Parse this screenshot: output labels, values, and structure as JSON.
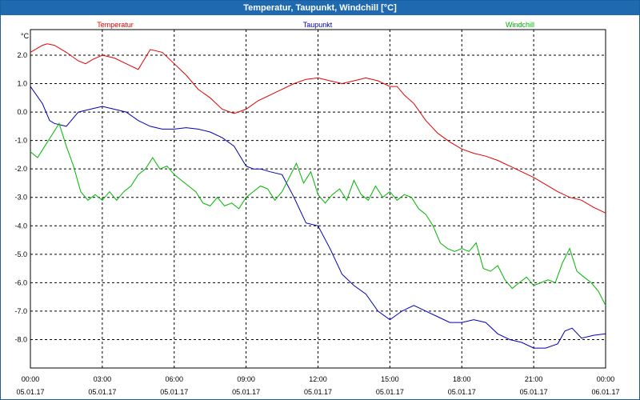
{
  "window": {
    "title": "Temperatur, Taupunkt, Windchill [°C]"
  },
  "chart_data": {
    "type": "line",
    "title": "Temperatur, Taupunkt, Windchill [°C]",
    "ylabel": "°C",
    "xlabel": "",
    "ylim": [
      -9.0,
      2.9
    ],
    "xlim": [
      0,
      24
    ],
    "grid": true,
    "y_ticks": [
      "2.0",
      "1.0",
      "0.0",
      "-1.0",
      "-2.0",
      "-3.0",
      "-4.0",
      "-5.0",
      "-6.0",
      "-7.0",
      "-8.0"
    ],
    "y_tick_values": [
      2,
      1,
      0,
      -1,
      -2,
      -3,
      -4,
      -5,
      -6,
      -7,
      -8
    ],
    "x_ticks": [
      {
        "time": "00:00",
        "date": "05.01.17"
      },
      {
        "time": "03:00",
        "date": "05.01.17"
      },
      {
        "time": "06:00",
        "date": "05.01.17"
      },
      {
        "time": "09:00",
        "date": "05.01.17"
      },
      {
        "time": "12:00",
        "date": "05.01.17"
      },
      {
        "time": "15:00",
        "date": "05.01.17"
      },
      {
        "time": "18:00",
        "date": "05.01.17"
      },
      {
        "time": "21:00",
        "date": "05.01.17"
      },
      {
        "time": "00:00",
        "date": "06.01.17"
      }
    ],
    "x_tick_values": [
      0,
      3,
      6,
      9,
      12,
      15,
      18,
      21,
      24
    ],
    "series": [
      {
        "name": "Temperatur",
        "color": "#e00000",
        "x": [
          0,
          0.5,
          0.7,
          1.0,
          1.5,
          2.0,
          2.3,
          2.6,
          3.0,
          3.5,
          4.0,
          4.5,
          5.0,
          5.5,
          6.0,
          6.5,
          7.0,
          7.5,
          8.0,
          8.5,
          9.0,
          9.5,
          10.0,
          10.5,
          11.0,
          11.5,
          12.0,
          12.5,
          13.0,
          13.5,
          14.0,
          14.5,
          15.0,
          15.3,
          15.6,
          16.0,
          16.5,
          17.0,
          17.5,
          18.0,
          18.5,
          19.0,
          19.5,
          20.0,
          20.5,
          21.0,
          21.5,
          22.0,
          22.5,
          23.0,
          23.5,
          24.0
        ],
        "values": [
          2.1,
          2.35,
          2.4,
          2.35,
          2.1,
          1.8,
          1.7,
          1.85,
          2.0,
          1.9,
          1.7,
          1.5,
          2.2,
          2.1,
          1.7,
          1.3,
          0.8,
          0.5,
          0.1,
          -0.05,
          0.1,
          0.4,
          0.6,
          0.8,
          1.0,
          1.15,
          1.2,
          1.1,
          1.0,
          1.1,
          1.2,
          1.1,
          0.9,
          0.9,
          0.6,
          0.3,
          -0.3,
          -0.75,
          -1.05,
          -1.3,
          -1.45,
          -1.55,
          -1.7,
          -1.9,
          -2.1,
          -2.3,
          -2.55,
          -2.8,
          -3.0,
          -3.1,
          -3.35,
          -3.55
        ]
      },
      {
        "name": "Taupunkt",
        "color": "#0000b4",
        "x": [
          0,
          0.5,
          0.8,
          1.0,
          1.5,
          2.0,
          2.5,
          3.0,
          3.5,
          4.0,
          4.5,
          5.0,
          5.5,
          6.0,
          6.5,
          7.0,
          7.5,
          8.0,
          8.5,
          9.0,
          9.3,
          9.6,
          10.0,
          10.5,
          11.0,
          11.5,
          12.0,
          12.5,
          13.0,
          13.5,
          14.0,
          14.5,
          15.0,
          15.5,
          16.0,
          16.5,
          17.0,
          17.5,
          18.0,
          18.5,
          19.0,
          19.5,
          20.0,
          20.5,
          21.0,
          21.5,
          22.0,
          22.3,
          22.6,
          23.0,
          23.5,
          24.0
        ],
        "values": [
          0.9,
          0.3,
          -0.3,
          -0.4,
          -0.5,
          0.0,
          0.1,
          0.2,
          0.1,
          0.0,
          -0.3,
          -0.5,
          -0.6,
          -0.6,
          -0.55,
          -0.6,
          -0.7,
          -0.9,
          -1.2,
          -1.9,
          -2.0,
          -2.0,
          -2.1,
          -2.2,
          -3.0,
          -3.9,
          -4.0,
          -4.8,
          -5.7,
          -6.1,
          -6.4,
          -7.0,
          -7.3,
          -7.0,
          -6.8,
          -7.0,
          -7.2,
          -7.4,
          -7.4,
          -7.3,
          -7.4,
          -7.8,
          -8.0,
          -8.1,
          -8.3,
          -8.3,
          -8.15,
          -7.7,
          -7.6,
          -7.95,
          -7.85,
          -7.8
        ]
      },
      {
        "name": "Windchill",
        "color": "#00b400",
        "x": [
          0,
          0.3,
          0.6,
          0.9,
          1.2,
          1.5,
          1.8,
          2.1,
          2.4,
          2.7,
          3.0,
          3.3,
          3.6,
          3.9,
          4.2,
          4.5,
          4.8,
          5.1,
          5.4,
          5.7,
          6.0,
          6.3,
          6.6,
          6.9,
          7.2,
          7.5,
          7.8,
          8.1,
          8.4,
          8.7,
          9.0,
          9.3,
          9.6,
          9.9,
          10.2,
          10.5,
          10.8,
          11.1,
          11.4,
          11.7,
          12.0,
          12.3,
          12.6,
          12.9,
          13.2,
          13.5,
          13.8,
          14.1,
          14.4,
          14.7,
          15.0,
          15.3,
          15.6,
          15.9,
          16.2,
          16.5,
          16.8,
          17.1,
          17.4,
          17.7,
          18.0,
          18.3,
          18.6,
          18.9,
          19.2,
          19.5,
          19.8,
          20.1,
          20.4,
          20.7,
          21.0,
          21.3,
          21.6,
          21.9,
          22.2,
          22.5,
          22.8,
          23.1,
          23.4,
          23.7,
          24.0
        ],
        "values": [
          -1.4,
          -1.6,
          -1.2,
          -0.8,
          -0.4,
          -1.2,
          -1.9,
          -2.8,
          -3.1,
          -2.9,
          -3.1,
          -2.8,
          -3.1,
          -2.8,
          -2.6,
          -2.2,
          -2.0,
          -1.6,
          -2.0,
          -1.9,
          -2.2,
          -2.4,
          -2.6,
          -2.8,
          -3.2,
          -3.3,
          -3.0,
          -3.3,
          -3.2,
          -3.4,
          -3.0,
          -2.8,
          -2.6,
          -2.7,
          -3.1,
          -2.8,
          -2.3,
          -1.8,
          -2.5,
          -2.1,
          -2.9,
          -3.2,
          -2.9,
          -2.7,
          -3.1,
          -2.4,
          -2.9,
          -3.1,
          -2.6,
          -3.0,
          -2.8,
          -3.1,
          -2.9,
          -3.0,
          -3.4,
          -3.6,
          -4.0,
          -4.6,
          -4.8,
          -4.9,
          -4.8,
          -4.9,
          -4.6,
          -5.5,
          -5.6,
          -5.4,
          -5.9,
          -6.2,
          -6.0,
          -5.8,
          -6.1,
          -6.0,
          -5.9,
          -6.0,
          -5.3,
          -4.8,
          -5.6,
          -5.8,
          -6.0,
          -6.3,
          -6.8
        ]
      }
    ]
  }
}
